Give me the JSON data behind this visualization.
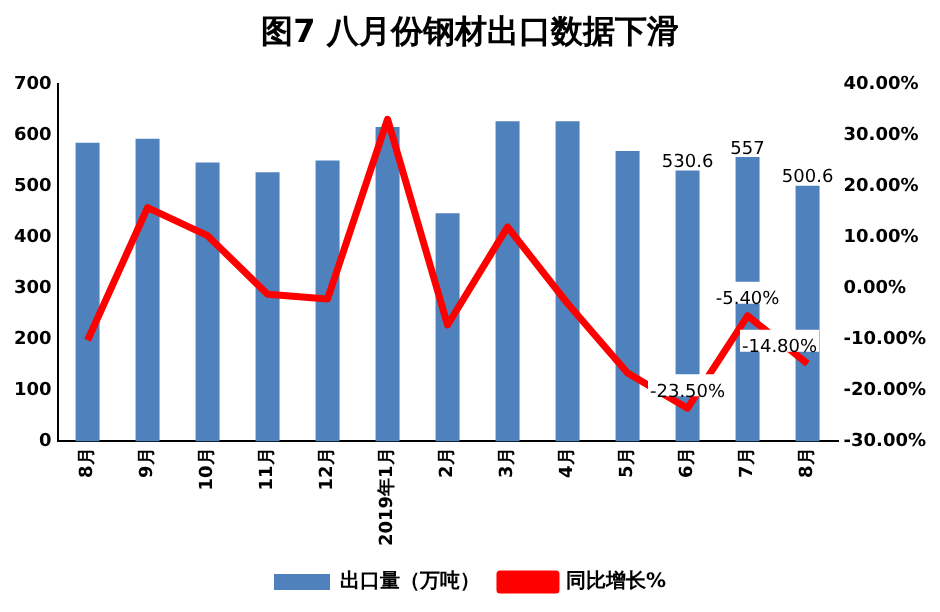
{
  "chart_data": {
    "type": "bar",
    "title": "图7 八月份钢材出口数据下滑",
    "categories": [
      "8月",
      "9月",
      "10月",
      "11月",
      "12月",
      "2019年1月",
      "2月",
      "3月",
      "4月",
      "5月",
      "6月",
      "7月",
      "8月"
    ],
    "series": [
      {
        "name": "出口量（万吨）",
        "color": "#4f81bd",
        "values": [
          585,
          593,
          546,
          527,
          550,
          616,
          447,
          627,
          627,
          569,
          530.6,
          557,
          500.6
        ],
        "value_labels": [
          null,
          null,
          null,
          null,
          null,
          null,
          null,
          null,
          null,
          null,
          "530.6",
          "557",
          "500.6"
        ]
      },
      {
        "name": "同比增长%",
        "type": "line",
        "axis": "y2",
        "color": "#ff0000",
        "values": [
          -10.2,
          15.8,
          10.3,
          -1.2,
          -2.1,
          33.1,
          -7.2,
          12.0,
          -3.0,
          -16.6,
          -23.5,
          -5.4,
          -14.8
        ],
        "value_labels": [
          null,
          null,
          null,
          null,
          null,
          null,
          null,
          null,
          null,
          null,
          "-23.50%",
          "-5.40%",
          "-14.80%"
        ]
      }
    ],
    "ylim": [
      0,
      700
    ],
    "yticks": [
      0,
      100,
      200,
      300,
      400,
      500,
      600,
      700
    ],
    "y2lim": [
      -30,
      40
    ],
    "y2ticks": [
      {
        "value": -30,
        "label": "-30.00%"
      },
      {
        "value": -20,
        "label": "-20.00%"
      },
      {
        "value": -10,
        "label": "-10.00%"
      },
      {
        "value": 0,
        "label": "0.00%"
      },
      {
        "value": 10,
        "label": "10.00%"
      },
      {
        "value": 20,
        "label": "20.00%"
      },
      {
        "value": 30,
        "label": "30.00%"
      },
      {
        "value": 40,
        "label": "40.00%"
      }
    ],
    "grid": false,
    "legend": "bottom",
    "marker": "none",
    "line_style": "solid"
  }
}
